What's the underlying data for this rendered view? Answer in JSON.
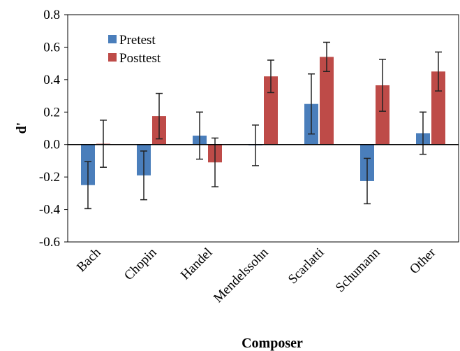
{
  "chart_data": {
    "type": "bar",
    "xlabel": "Composer",
    "ylabel": "d'",
    "ylim": [
      -0.6,
      0.8
    ],
    "yticks": [
      -0.6,
      -0.4,
      -0.2,
      0.0,
      0.2,
      0.4,
      0.6,
      0.8
    ],
    "ytick_labels": [
      "-0.6",
      "-0.4",
      "-0.2",
      "0.0",
      "0.2",
      "0.4",
      "0.6",
      "0.8"
    ],
    "categories": [
      "Bach",
      "Chopin",
      "Handel",
      "Mendelssohn",
      "Scarlatti",
      "Schumann",
      "Other"
    ],
    "series": [
      {
        "name": "Pretest",
        "color": "#4a7ebb",
        "values": [
          -0.25,
          -0.19,
          0.055,
          -0.005,
          0.25,
          -0.225,
          0.07
        ],
        "errors": [
          0.145,
          0.15,
          0.145,
          0.125,
          0.185,
          0.14,
          0.13
        ]
      },
      {
        "name": "Posttest",
        "color": "#be4b48",
        "values": [
          0.005,
          0.175,
          -0.11,
          0.42,
          0.54,
          0.365,
          0.45
        ],
        "errors": [
          0.145,
          0.14,
          0.15,
          0.1,
          0.09,
          0.16,
          0.12
        ]
      }
    ],
    "legend_position": "upper-left inside plot",
    "grid": false
  }
}
